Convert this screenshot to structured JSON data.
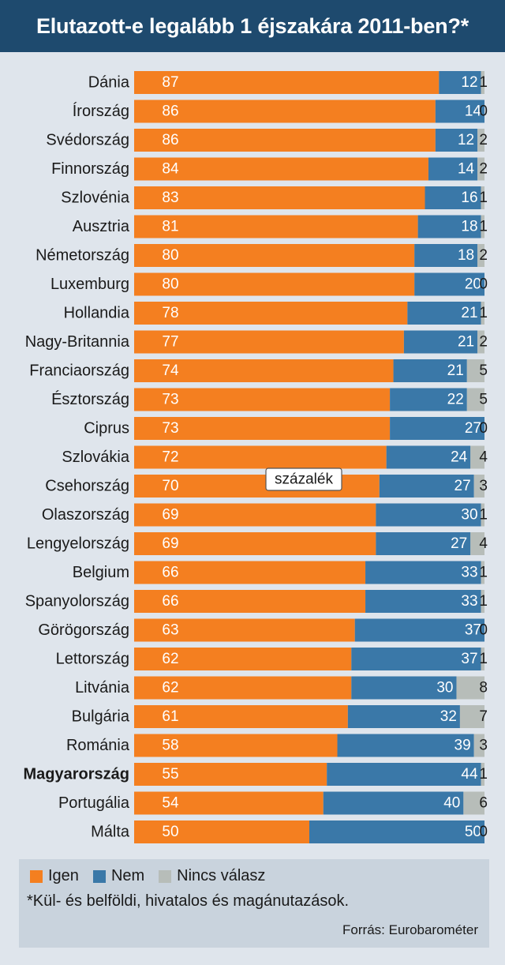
{
  "title": "Elutazott-e legalább 1 éjszakára 2011-ben?*",
  "unit_label": "százalék",
  "legend": {
    "yes": "Igen",
    "no": "Nem",
    "none": "Nincs válasz"
  },
  "footnote": "*Kül- és belföldi, hivatalos és magánutazások.",
  "source": "Forrás: Eurobarométer",
  "colors": {
    "yes": "#f47f20",
    "no": "#3a78a8",
    "none": "#b7bdb9",
    "title_bg": "#1e4a6e",
    "background": "#dfe5ec"
  },
  "chart_data": {
    "type": "bar",
    "orientation": "horizontal",
    "stacked": true,
    "categories": [
      "Dánia",
      "Írország",
      "Svédország",
      "Finnország",
      "Szlovénia",
      "Ausztria",
      "Németország",
      "Luxemburg",
      "Hollandia",
      "Nagy-Britannia",
      "Franciaország",
      "Észtország",
      "Ciprus",
      "Szlovákia",
      "Csehország",
      "Olaszország",
      "Lengyelország",
      "Belgium",
      "Spanyolország",
      "Görögország",
      "Lettország",
      "Litvánia",
      "Bulgária",
      "Románia",
      "Magyarország",
      "Portugália",
      "Málta"
    ],
    "highlight": "Magyarország",
    "series": [
      {
        "name": "Igen",
        "values": [
          87,
          86,
          86,
          84,
          83,
          81,
          80,
          80,
          78,
          77,
          74,
          73,
          73,
          72,
          70,
          69,
          69,
          66,
          66,
          63,
          62,
          62,
          61,
          58,
          55,
          54,
          50
        ]
      },
      {
        "name": "Nem",
        "values": [
          12,
          14,
          12,
          14,
          16,
          18,
          18,
          20,
          21,
          21,
          21,
          22,
          27,
          24,
          27,
          30,
          27,
          33,
          33,
          37,
          37,
          30,
          32,
          39,
          44,
          40,
          50
        ]
      },
      {
        "name": "Nincs válasz",
        "values": [
          1,
          0,
          2,
          2,
          1,
          1,
          2,
          0,
          1,
          2,
          5,
          5,
          0,
          4,
          3,
          1,
          4,
          1,
          1,
          0,
          1,
          8,
          7,
          3,
          1,
          6,
          0
        ]
      }
    ],
    "xlim": [
      0,
      100
    ]
  }
}
